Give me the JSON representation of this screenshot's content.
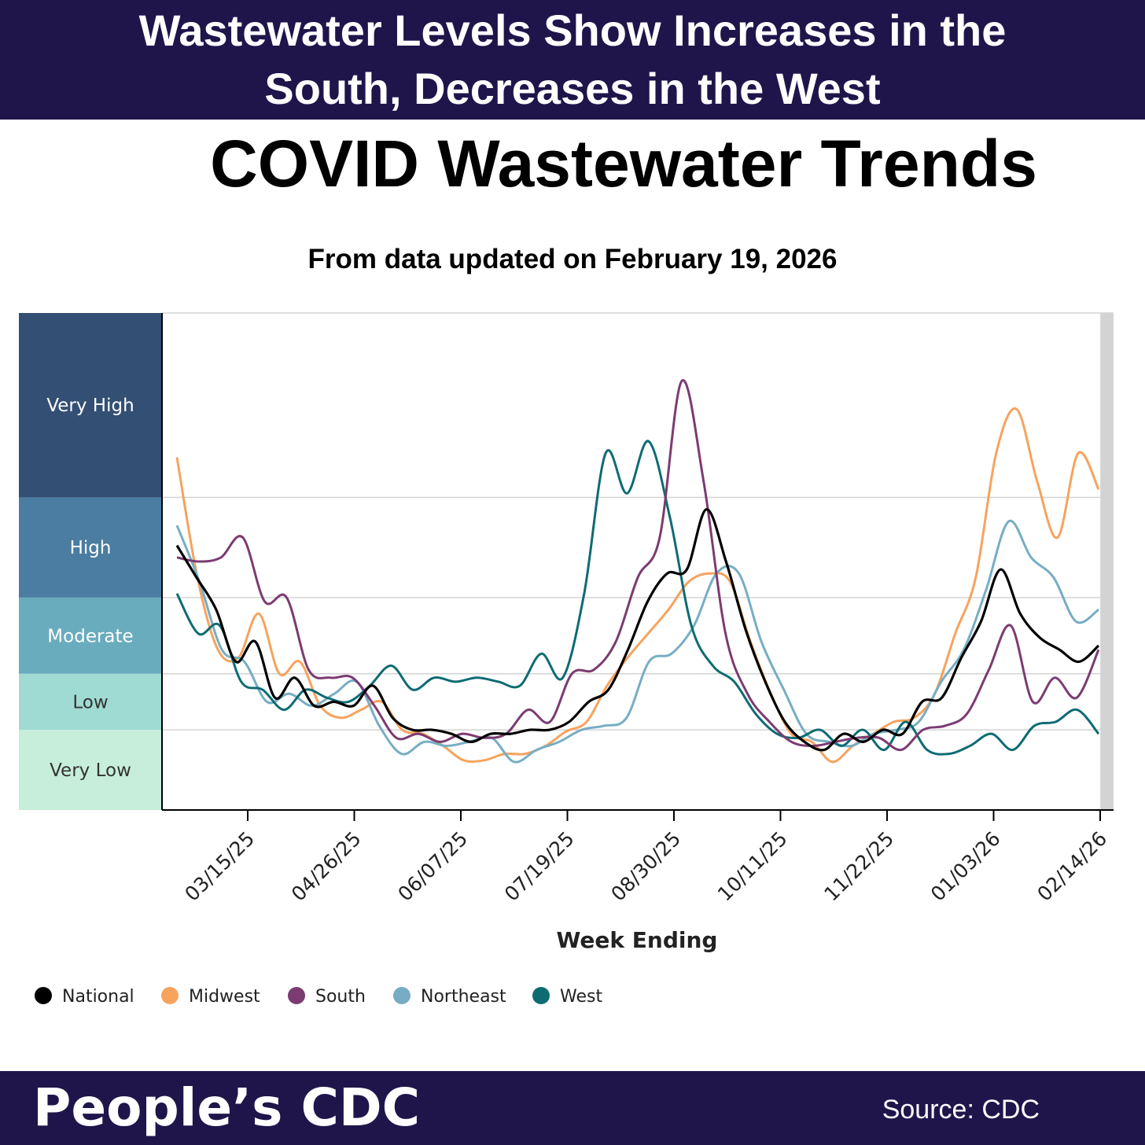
{
  "banner": {
    "line1": "Wastewater Levels Show Increases in the",
    "line2": "South, Decreases in the West"
  },
  "title": "COVID Wastewater Trends",
  "subtitle": "From data updated on February 19, 2026",
  "footer": {
    "brand": "People’s CDC",
    "source": "Source: CDC"
  },
  "chart_data": {
    "type": "line",
    "xlabel": "Week Ending",
    "ylabel": "",
    "x_ticks": [
      "03/15/25",
      "04/26/25",
      "06/07/25",
      "07/19/25",
      "08/30/25",
      "10/11/25",
      "11/22/25",
      "01/03/26",
      "02/14/26"
    ],
    "ylim": [
      0,
      6.2
    ],
    "grid": true,
    "levels": [
      {
        "label": "Very Low",
        "from": 0,
        "to": 1,
        "color": "#c6eedb"
      },
      {
        "label": "Low",
        "from": 1,
        "to": 1.7,
        "color": "#9fdbd2"
      },
      {
        "label": "Moderate",
        "from": 1.7,
        "to": 2.65,
        "color": "#69acbd"
      },
      {
        "label": "High",
        "from": 2.65,
        "to": 3.9,
        "color": "#4a7da1"
      },
      {
        "label": "Very High",
        "from": 3.9,
        "to": 6.2,
        "color": "#334f74"
      }
    ],
    "provisional_from_week": 52,
    "legend_position": "bottom-left",
    "series": [
      {
        "name": "National",
        "color": "#000000",
        "values": [
          3.3,
          2.9,
          2.5,
          1.85,
          2.1,
          1.4,
          1.65,
          1.3,
          1.35,
          1.3,
          1.55,
          1.15,
          1.0,
          1.0,
          0.95,
          0.85,
          0.95,
          0.95,
          1.0,
          1.0,
          1.1,
          1.35,
          1.5,
          2.0,
          2.6,
          2.95,
          3.0,
          3.75,
          3.1,
          2.25,
          1.6,
          1.1,
          0.85,
          0.75,
          0.95,
          0.85,
          1.0,
          0.95,
          1.35,
          1.4,
          1.9,
          2.35,
          3.0,
          2.45,
          2.15,
          2.0,
          1.85,
          2.05
        ]
      },
      {
        "name": "Midwest",
        "color": "#f6a35e",
        "values": [
          4.4,
          2.9,
          2.0,
          1.9,
          2.45,
          1.7,
          1.85,
          1.3,
          1.15,
          1.25,
          1.35,
          1.0,
          0.95,
          0.8,
          0.62,
          0.62,
          0.7,
          0.7,
          0.8,
          0.98,
          1.1,
          1.55,
          1.9,
          2.2,
          2.5,
          2.85,
          2.95,
          2.85,
          2.1,
          1.45,
          0.95,
          0.85,
          0.6,
          0.8,
          0.95,
          1.1,
          1.15,
          1.45,
          2.2,
          2.9,
          4.45,
          5.0,
          4.1,
          3.4,
          4.45,
          4.0
        ]
      },
      {
        "name": "South",
        "color": "#7c3b72",
        "values": [
          3.15,
          3.1,
          3.15,
          3.4,
          2.6,
          2.65,
          1.75,
          1.65,
          1.65,
          1.3,
          0.9,
          0.95,
          0.85,
          0.95,
          0.9,
          0.95,
          1.25,
          1.1,
          1.7,
          1.75,
          2.1,
          2.9,
          3.4,
          5.35,
          4.1,
          2.2,
          1.45,
          1.1,
          0.85,
          0.8,
          0.85,
          0.9,
          0.9,
          0.75,
          1.0,
          1.05,
          1.2,
          1.75,
          2.3,
          1.35,
          1.65,
          1.4,
          2.0
        ]
      },
      {
        "name": "Northeast",
        "color": "#77adc4",
        "values": [
          3.55,
          2.85,
          2.0,
          1.85,
          1.35,
          1.45,
          1.3,
          1.45,
          1.6,
          1.05,
          0.7,
          0.85,
          0.8,
          0.85,
          0.9,
          0.6,
          0.75,
          0.85,
          1.0,
          1.05,
          1.15,
          1.85,
          1.95,
          2.3,
          2.95,
          2.95,
          2.1,
          1.5,
          0.95,
          0.85,
          0.8,
          0.95,
          1.0,
          1.1,
          1.6,
          2.0,
          2.75,
          3.6,
          3.15,
          2.9,
          2.35,
          2.5
        ]
      },
      {
        "name": "West",
        "color": "#0e6b73",
        "values": [
          2.7,
          2.2,
          2.3,
          1.6,
          1.5,
          1.25,
          1.5,
          1.4,
          1.35,
          1.55,
          1.8,
          1.5,
          1.65,
          1.6,
          1.65,
          1.6,
          1.55,
          1.95,
          1.65,
          2.7,
          4.45,
          3.95,
          4.6,
          3.65,
          2.3,
          1.8,
          1.6,
          1.2,
          0.95,
          0.9,
          1.0,
          0.8,
          1.0,
          0.75,
          1.1,
          0.75,
          0.7,
          0.8,
          0.95,
          0.75,
          1.05,
          1.1,
          1.25,
          0.95
        ]
      }
    ]
  },
  "legend": [
    "National",
    "Midwest",
    "South",
    "Northeast",
    "West"
  ]
}
